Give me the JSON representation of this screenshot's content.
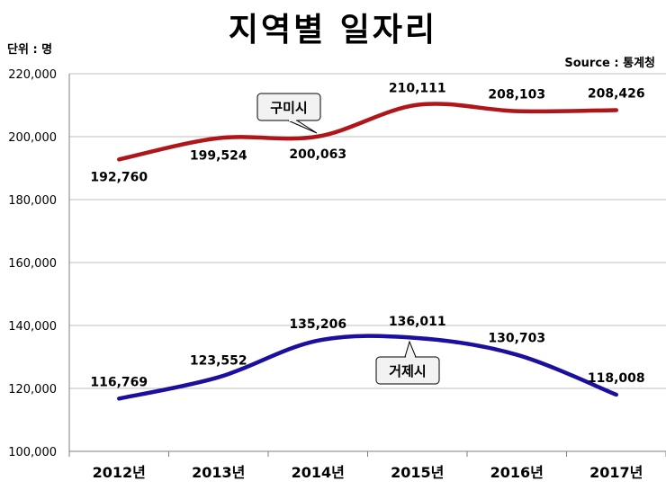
{
  "title": "지역별 일자리",
  "unit_label": "단위 : 명",
  "source_label": "Source :  통계청",
  "colors": {
    "gumi": "#b0151a",
    "geoje": "#1a0f9e",
    "grid": "#bfbfbf",
    "axis": "#7f7f7f"
  },
  "chart_data": {
    "type": "line",
    "smooth": true,
    "categories": [
      "2012년",
      "2013년",
      "2014년",
      "2015년",
      "2016년",
      "2017년"
    ],
    "ylim": [
      100000,
      220000
    ],
    "yticks": [
      100000,
      120000,
      140000,
      160000,
      180000,
      200000,
      220000
    ],
    "ytick_labels": [
      "100,000",
      "120,000",
      "140,000",
      "160,000",
      "180,000",
      "200,000",
      "220,000"
    ],
    "grid": true,
    "series": [
      {
        "name": "구미시",
        "color": "#b0151a",
        "values": [
          192760,
          199524,
          200063,
          210111,
          208103,
          208426
        ],
        "labels": [
          "192,760",
          "199,524",
          "200,063",
          "210,111",
          "208,103",
          "208,426"
        ]
      },
      {
        "name": "거제시",
        "color": "#1a0f9e",
        "values": [
          116769,
          123552,
          135206,
          136011,
          130703,
          118008
        ],
        "labels": [
          "116,769",
          "123,552",
          "135,206",
          "136,011",
          "130,703",
          "118,008"
        ]
      }
    ]
  }
}
